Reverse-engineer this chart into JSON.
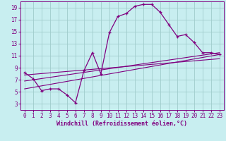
{
  "xlabel": "Windchill (Refroidissement éolien,°C)",
  "bg_color": "#c8eef0",
  "line_color": "#800080",
  "grid_color": "#a0cccc",
  "curve1_x": [
    0,
    1,
    2,
    3,
    4,
    5,
    6,
    7,
    8,
    9,
    10,
    11,
    12,
    13,
    14,
    15,
    16,
    17,
    18,
    19,
    20,
    21,
    22,
    23
  ],
  "curve1_y": [
    8.2,
    7.2,
    5.2,
    5.5,
    5.5,
    4.5,
    3.2,
    8.5,
    11.5,
    8.0,
    14.8,
    17.5,
    18.0,
    19.2,
    19.5,
    19.5,
    18.2,
    16.2,
    14.2,
    14.5,
    13.2,
    11.5,
    11.5,
    11.2
  ],
  "line2_x": [
    0,
    23
  ],
  "line2_y": [
    5.5,
    11.2
  ],
  "line3_x": [
    0,
    23
  ],
  "line3_y": [
    6.8,
    11.5
  ],
  "line4_x": [
    0,
    23
  ],
  "line4_y": [
    7.8,
    10.5
  ],
  "xlim": [
    -0.5,
    23.5
  ],
  "ylim": [
    2.0,
    20.0
  ],
  "xticks": [
    0,
    1,
    2,
    3,
    4,
    5,
    6,
    7,
    8,
    9,
    10,
    11,
    12,
    13,
    14,
    15,
    16,
    17,
    18,
    19,
    20,
    21,
    22,
    23
  ],
  "yticks": [
    3,
    5,
    7,
    9,
    11,
    13,
    15,
    17,
    19
  ],
  "tick_fontsize": 5.5,
  "xlabel_fontsize": 6.0
}
